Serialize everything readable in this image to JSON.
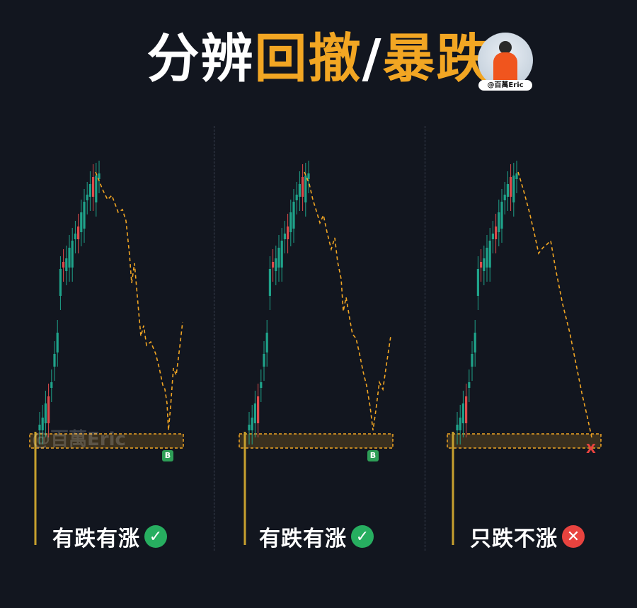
{
  "title": {
    "part1": "分辨",
    "part2": "回撤",
    "sep": "/",
    "part3": "暴跌"
  },
  "avatar": {
    "badge": "@百萬Eric"
  },
  "watermark": "@百萬Eric",
  "colors": {
    "up": "#1fa38a",
    "down": "#e04a4a",
    "path": "#f2a623",
    "zone": "#f2a623",
    "ok": "#27ae60",
    "bad": "#e8433f"
  },
  "panels": [
    {
      "caption": "有跌有涨",
      "status": "ok",
      "icon": "check-circle-icon",
      "marker": "B"
    },
    {
      "caption": "有跌有涨",
      "status": "ok",
      "icon": "check-circle-icon",
      "marker": "B"
    },
    {
      "caption": "只跌不涨",
      "status": "bad",
      "icon": "x-circle-icon",
      "marker": "X"
    }
  ]
}
